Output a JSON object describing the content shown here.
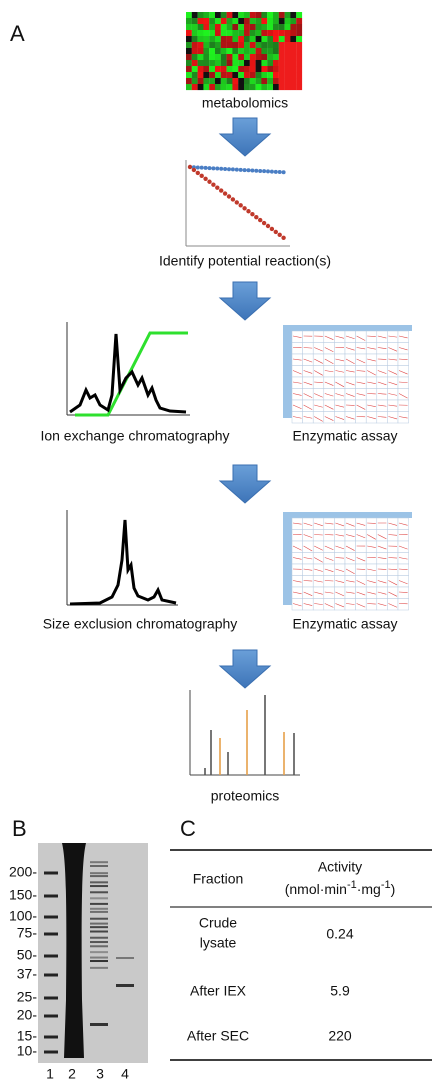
{
  "panel_a": {
    "label": "A",
    "steps": {
      "metabolomics": "metabolomics",
      "identify": "Identify potential reaction(s)",
      "iex": "Ion exchange chromatography",
      "iex_assay": "Enzymatic assay",
      "sec": "Size exclusion chromatography",
      "sec_assay": "Enzymatic assay",
      "proteomics": "proteomics"
    }
  },
  "panel_b": {
    "label": "B",
    "ladder": [
      "200-",
      "150-",
      "100-",
      "75-",
      "50-",
      "37-",
      "25-",
      "20-",
      "15-",
      "10-"
    ],
    "lanes": [
      "1",
      "2",
      "3",
      "4"
    ]
  },
  "panel_c": {
    "label": "C",
    "header": {
      "fraction": "Fraction",
      "activity": "Activity",
      "unit": [
        "(nmol·min",
        "-1",
        "·mg",
        "-1",
        ")"
      ]
    },
    "rows": [
      [
        "Crude",
        "lysate",
        "0.24"
      ],
      [
        "After IEX",
        "5.9"
      ],
      [
        "After SEC",
        "220"
      ]
    ]
  }
}
